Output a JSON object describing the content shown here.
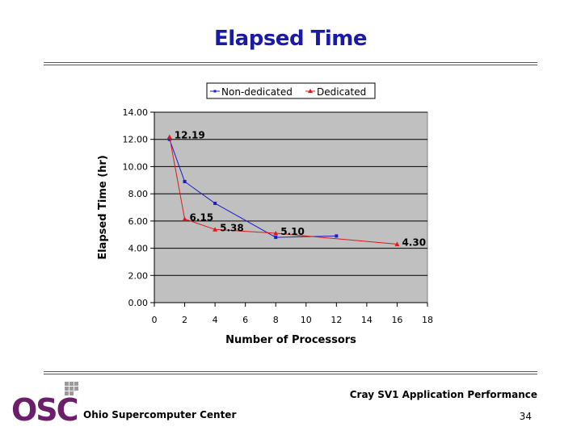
{
  "slide": {
    "title": "Elapsed Time",
    "footer_title": "Cray SV1 Application Performance",
    "page_number": "34",
    "org_name": "Ohio Supercomputer Center",
    "logo_text": "OSC"
  },
  "colors": {
    "title": "#1a1aa6",
    "plot_bg": "#c0c0c0",
    "non_dedicated": "#1c1cc8",
    "dedicated": "#e01818",
    "logo": "#6b1f6b"
  },
  "chart_data": {
    "type": "line",
    "title": "",
    "xlabel": "Number of Processors",
    "ylabel": "Elapsed Time (hr)",
    "xlim": [
      0,
      18
    ],
    "ylim": [
      0,
      14
    ],
    "x_ticks": [
      "0",
      "2",
      "4",
      "6",
      "8",
      "10",
      "12",
      "14",
      "16",
      "18"
    ],
    "y_ticks": [
      "0.00",
      "2.00",
      "4.00",
      "6.00",
      "8.00",
      "10.00",
      "12.00",
      "14.00"
    ],
    "grid": "horizontal",
    "legend_position": "top",
    "series": [
      {
        "name": "Non-dedicated",
        "color": "#1c1cc8",
        "marker": "square",
        "x": [
          1,
          2,
          4,
          8,
          12
        ],
        "y": [
          12.0,
          8.9,
          7.3,
          4.8,
          4.9
        ]
      },
      {
        "name": "Dedicated",
        "color": "#e01818",
        "marker": "triangle",
        "x": [
          1,
          2,
          4,
          8,
          16
        ],
        "y": [
          12.19,
          6.15,
          5.38,
          5.1,
          4.3
        ],
        "data_labels": [
          "12.19",
          "6.15",
          "5.38",
          "5.10",
          "4.30"
        ]
      }
    ]
  }
}
